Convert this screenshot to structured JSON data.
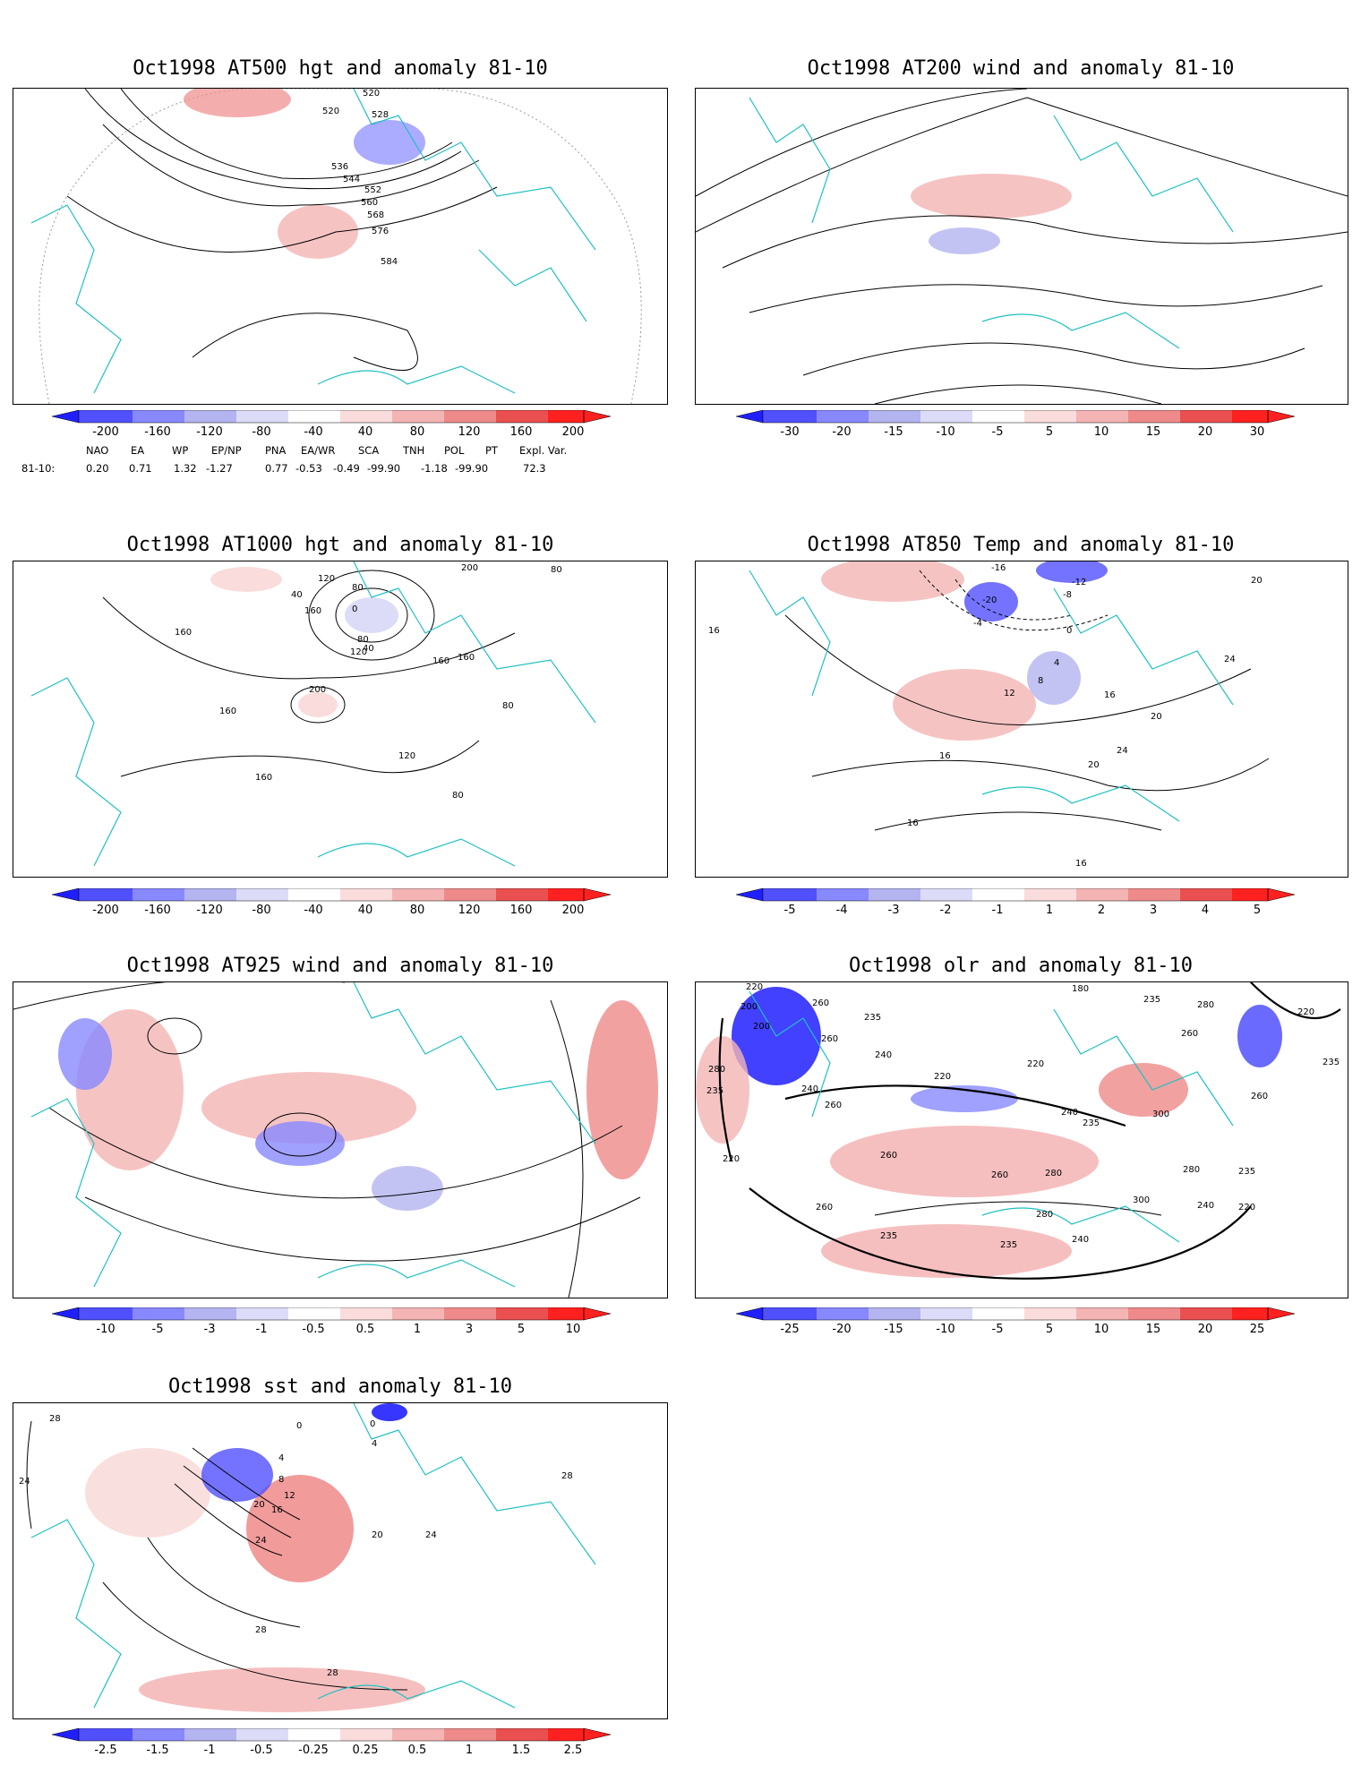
{
  "panels": [
    {
      "title": "Oct1998 AT500 hgt and anomaly 81-10",
      "contour_labels": [
        "520",
        "520",
        "528",
        "536",
        "544",
        "552",
        "560",
        "568",
        "576",
        "584"
      ],
      "colorbar": [
        "-200",
        "-160",
        "-120",
        "-80",
        "-40",
        "40",
        "80",
        "120",
        "160",
        "200"
      ]
    },
    {
      "title": "Oct1998 AT200 wind and anomaly 81-10",
      "contour_labels": [],
      "colorbar": [
        "-30",
        "-20",
        "-15",
        "-10",
        "-5",
        "5",
        "10",
        "15",
        "20",
        "30"
      ]
    },
    {
      "title": "Oct1998 AT1000 hgt and anomaly 81-10",
      "contour_labels": [
        "200",
        "120",
        "80",
        "80",
        "40",
        "160",
        "0",
        "160",
        "80",
        "120",
        "160",
        "160",
        "200",
        "160",
        "80",
        "160",
        "120",
        "80",
        "40"
      ],
      "colorbar": [
        "-200",
        "-160",
        "-120",
        "-80",
        "-40",
        "40",
        "80",
        "120",
        "160",
        "200"
      ]
    },
    {
      "title": "Oct1998 AT850 Temp and anomaly 81-10",
      "contour_labels": [
        "-16",
        "-12",
        "-8",
        "-20",
        "-4",
        "0",
        "16",
        "20",
        "4",
        "8",
        "12",
        "16",
        "24",
        "20",
        "16",
        "24",
        "20",
        "16",
        "16"
      ],
      "colorbar": [
        "-5",
        "-4",
        "-3",
        "-2",
        "-1",
        "1",
        "2",
        "3",
        "4",
        "5"
      ]
    },
    {
      "title": "Oct1998 AT925 wind and anomaly 81-10",
      "contour_labels": [],
      "colorbar": [
        "-10",
        "-5",
        "-3",
        "-1",
        "-0.5",
        "0.5",
        "1",
        "3",
        "5",
        "10"
      ]
    },
    {
      "title": "Oct1998 olr and anomaly 81-10",
      "contour_labels": [
        "220",
        "200",
        "200",
        "260",
        "280",
        "235",
        "260",
        "240",
        "240",
        "220",
        "260",
        "235",
        "180",
        "220",
        "235",
        "280",
        "260",
        "220",
        "235",
        "240",
        "300",
        "260",
        "235",
        "260",
        "280",
        "260",
        "280",
        "300",
        "235",
        "220",
        "240",
        "260",
        "280",
        "235",
        "235",
        "240",
        "220"
      ],
      "colorbar": [
        "-25",
        "-20",
        "-15",
        "-10",
        "-5",
        "5",
        "10",
        "15",
        "20",
        "25"
      ]
    },
    {
      "title": "Oct1998 sst and anomaly 81-10",
      "contour_labels": [
        "28",
        "24",
        "0",
        "0",
        "4",
        "4",
        "8",
        "12",
        "16",
        "20",
        "24",
        "20",
        "24",
        "28",
        "28",
        "28"
      ],
      "colorbar": [
        "-2.5",
        "-1.5",
        "-1",
        "-0.5",
        "-0.25",
        "0.25",
        "0.5",
        "1",
        "1.5",
        "2.5"
      ]
    }
  ],
  "teleconnection": {
    "headers": [
      "NAO",
      "EA",
      "WP",
      "EP/NP",
      "PNA",
      "EA/WR",
      "SCA",
      "TNH",
      "POL",
      "PT",
      "Expl. Var."
    ],
    "row_label": "81-10:",
    "values": [
      "0.20",
      "0.71",
      "1.32",
      "-1.27",
      "0.77",
      "-0.53",
      "-0.49",
      "-99.90",
      "-1.18",
      "-99.90",
      "72.3"
    ]
  },
  "colors": {
    "coast": "#20c0c0",
    "blue_scale": [
      "#2020ff",
      "#5050ff",
      "#8888ff",
      "#b4b4f0",
      "#dcdcf8"
    ],
    "red_scale": [
      "#fadcdc",
      "#f4b4b4",
      "#ef8a8a",
      "#ea5050",
      "#ff2020"
    ]
  }
}
